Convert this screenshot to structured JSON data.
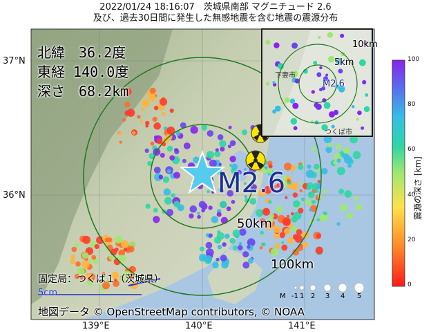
{
  "header": {
    "line1": "2022/01/24 18:16:07　茨城県南部 マグニチュード 2.6",
    "line2": "及び、過去30日間に発生した無感地震を含む地震の震源分布"
  },
  "info": {
    "lat": "北緯　36.2度",
    "lon": "東経 140.0度",
    "depth": "深さ　68.2km"
  },
  "epicenter": {
    "magnitude_label": "M2.6"
  },
  "rings": {
    "r50": "50km",
    "r100": "100km"
  },
  "inset": {
    "r5": "5km",
    "r10": "10km",
    "mag": "M2.6",
    "place1": "下妻市",
    "place2": "つくば市"
  },
  "axes": {
    "lat_labels": [
      "37°N",
      "36°N"
    ],
    "lon_labels": [
      "139°E",
      "140°E",
      "141°E"
    ]
  },
  "station": {
    "label": "固定局：つくば１（茨城県）",
    "scale": "5cm"
  },
  "credit": "地図データ © OpenStreetMap contributors, © NOAA",
  "colorbar": {
    "title": "震源の深さ [km]",
    "ticks": [
      "100",
      "80",
      "60",
      "40",
      "20",
      "0"
    ]
  },
  "magnitude_legend": {
    "prefix": "M",
    "values": [
      "-1",
      "1",
      "2",
      "3",
      "4",
      "5"
    ]
  },
  "colors": {
    "star": "#55ccee",
    "ring": "#1f7a1f",
    "depth_shallow": "#ff2020",
    "depth_mid": "#22cc99",
    "depth_deep": "#7733ee",
    "sea": "#a9c6e2"
  }
}
